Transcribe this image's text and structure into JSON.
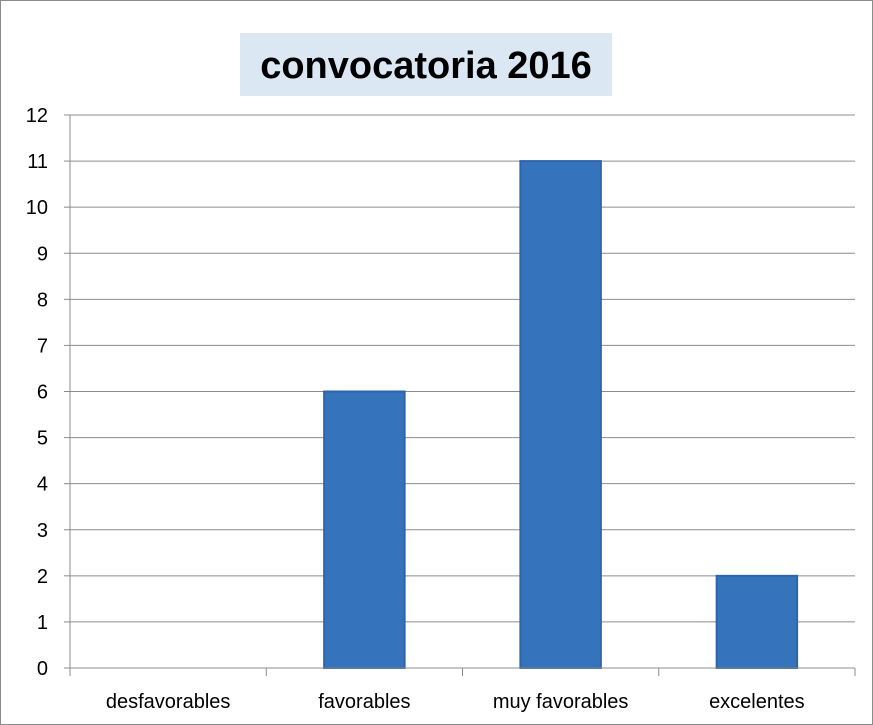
{
  "chart_data": {
    "type": "bar",
    "title": "convocatoria 2016",
    "categories": [
      "desfavorables",
      "favorables",
      "muy favorables",
      "excelentes"
    ],
    "values": [
      0,
      6,
      11,
      2
    ],
    "ylim": [
      0,
      12
    ],
    "yticks": [
      "0",
      "1",
      "2",
      "3",
      "4",
      "5",
      "6",
      "7",
      "8",
      "9",
      "10",
      "11",
      "12"
    ],
    "grid": true,
    "legend": "none",
    "colors": {
      "bar": "#3574bc",
      "bar_edge": "#2d65a8",
      "gridline": "#8c8c8c",
      "title_bg": "#dce7f4",
      "frame": "#8c8c8c"
    }
  }
}
